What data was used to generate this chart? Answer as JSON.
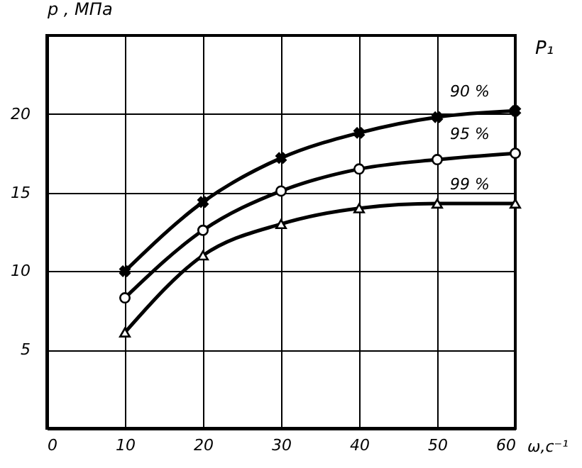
{
  "chart_data": {
    "type": "line",
    "xlabel": "ω,с⁻¹",
    "ylabel": "p , МПа",
    "legend_title": "P₁",
    "x": [
      10,
      20,
      30,
      40,
      50,
      60
    ],
    "series": [
      {
        "name": "90 %",
        "color": "#000000",
        "marker": "cross",
        "values": [
          10,
          14.4,
          17.2,
          18.8,
          19.8,
          20.2
        ]
      },
      {
        "name": "95 %",
        "color": "#000000",
        "marker": "circle",
        "values": [
          8.3,
          12.6,
          15.1,
          16.5,
          17.1,
          17.5
        ]
      },
      {
        "name": "99 %",
        "color": "#000000",
        "marker": "triangle",
        "values": [
          6.1,
          11.0,
          13.0,
          14.0,
          14.3,
          14.3
        ]
      }
    ],
    "xlim": [
      0,
      60
    ],
    "xticks": [
      0,
      10,
      20,
      30,
      40,
      50,
      60
    ],
    "ylim": [
      0,
      25
    ],
    "yticks": [
      5,
      10,
      15,
      20,
      {
        "value": 25,
        "label": null
      }
    ],
    "grid": true,
    "line_style": "solid"
  }
}
